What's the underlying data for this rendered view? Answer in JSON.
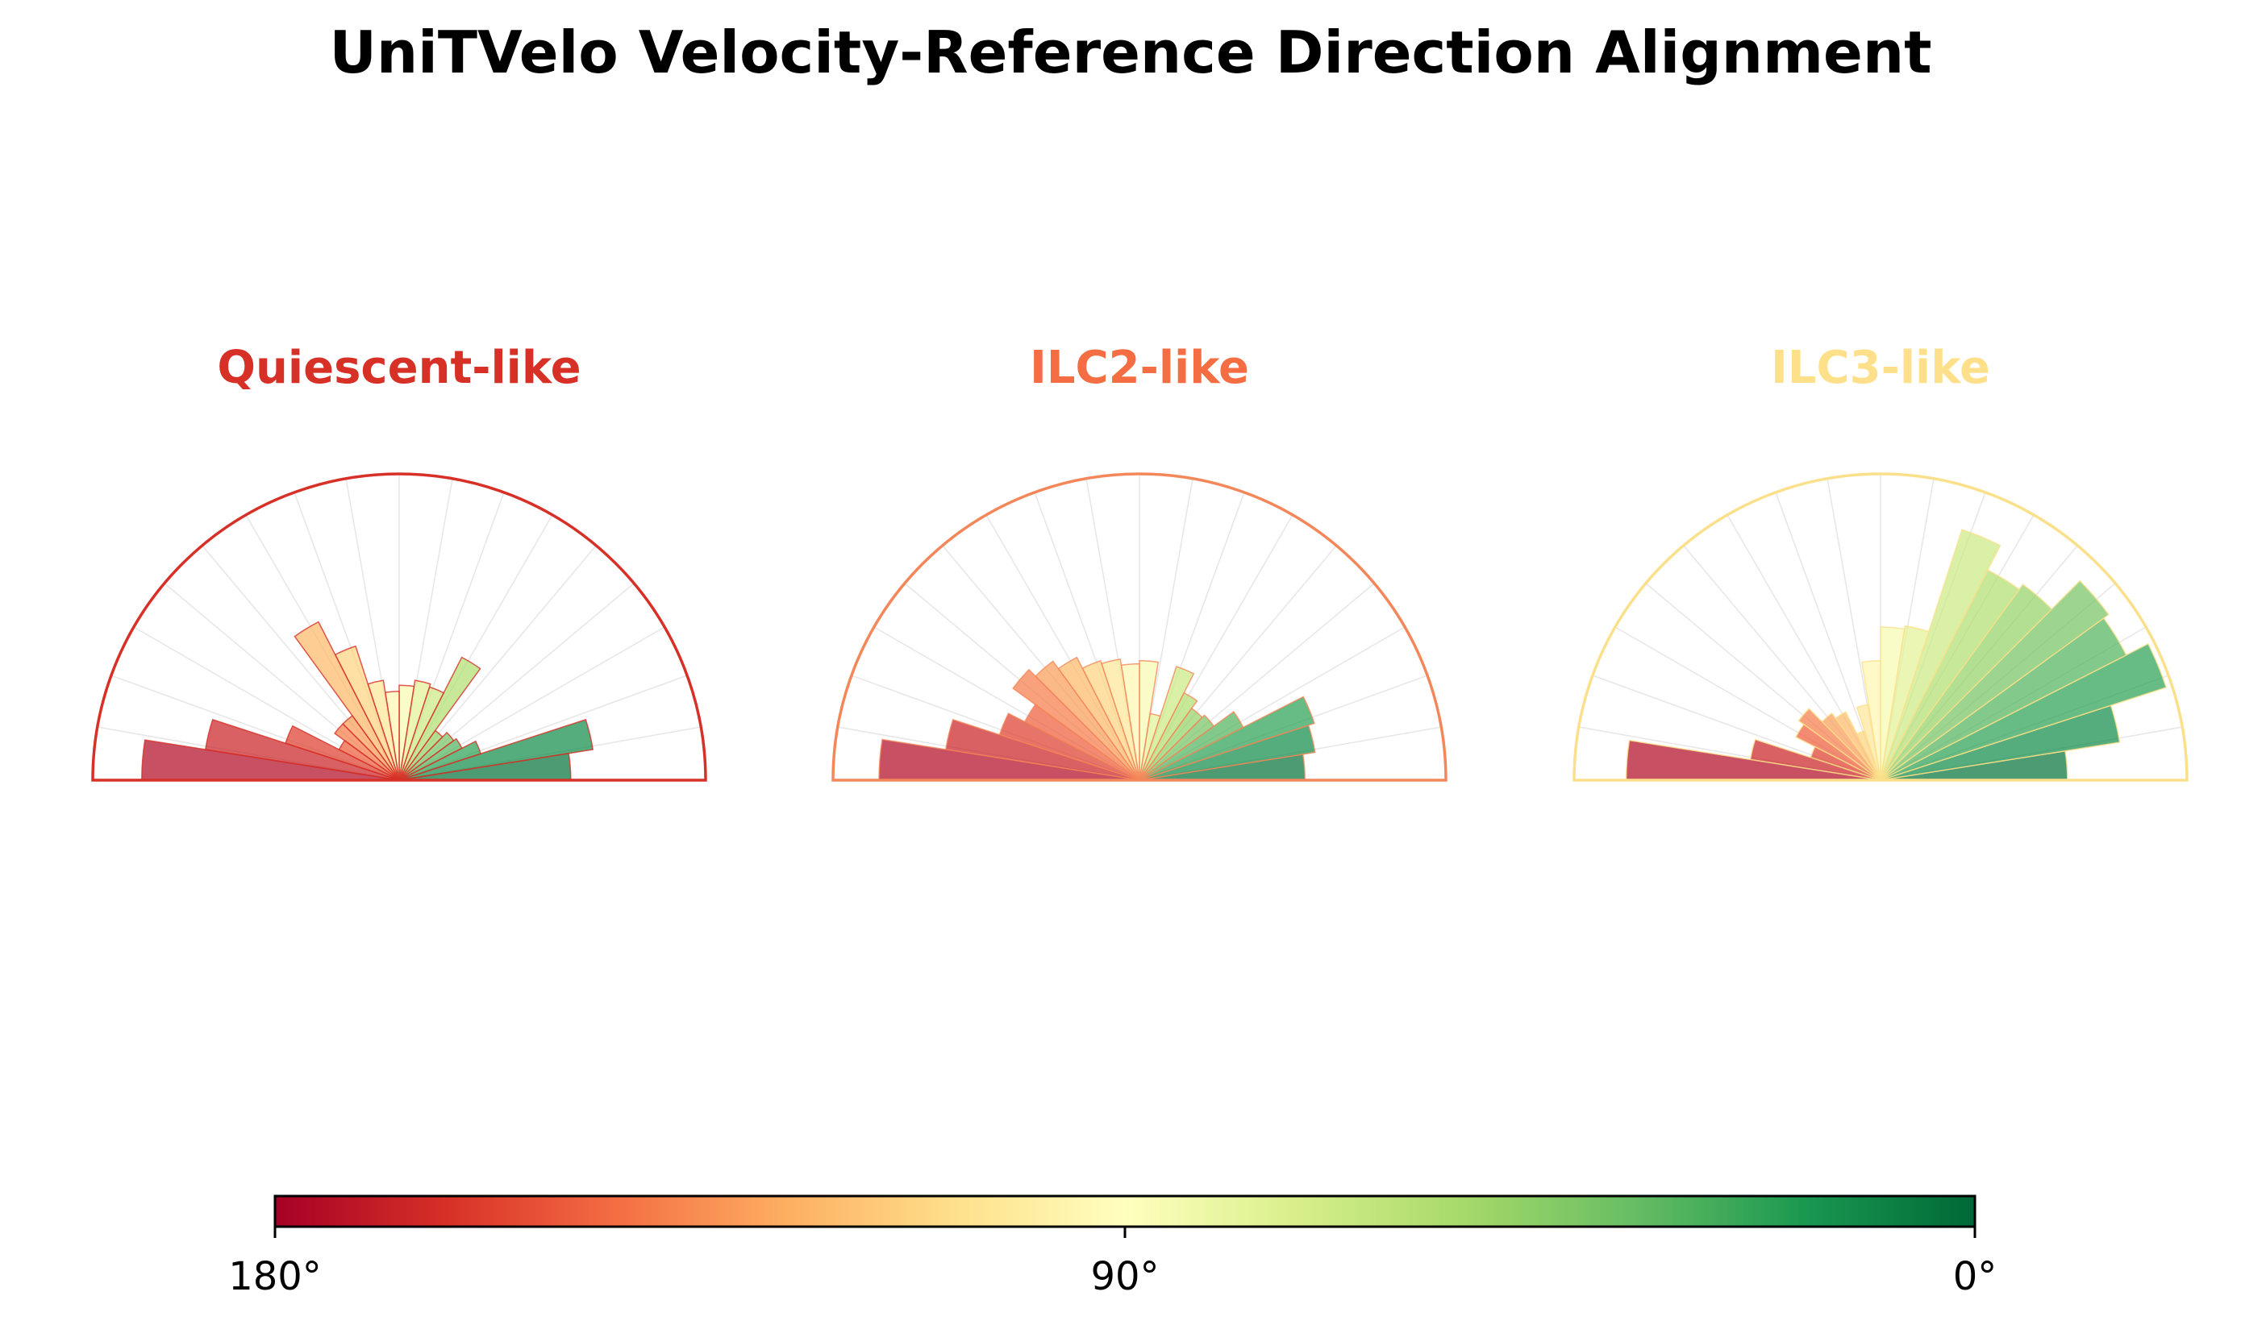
{
  "title": "UniTVelo Velocity-Reference Direction Alignment",
  "chart_data": [
    {
      "type": "polar-bar",
      "title": "Quiescent-like",
      "title_color": "#d73027",
      "frame_color": "#d73027",
      "bin_width_deg": 9,
      "x_unit": "angle (degrees, 0° right → 180° left)",
      "x": [
        4.5,
        13.5,
        22.5,
        31.5,
        40.5,
        49.5,
        58.5,
        67.5,
        76.5,
        85.5,
        94.5,
        103.5,
        112.5,
        121.5,
        130.5,
        139.5,
        148.5,
        157.5,
        166.5,
        175.5
      ],
      "values": [
        0.56,
        0.64,
        0.28,
        0.23,
        0.22,
        0.2,
        0.45,
        0.32,
        0.33,
        0.31,
        0.29,
        0.33,
        0.46,
        0.58,
        0.26,
        0.26,
        0.22,
        0.39,
        0.64,
        0.84
      ],
      "rlim": [
        0,
        1
      ]
    },
    {
      "type": "polar-bar",
      "title": "ILC2-like",
      "title_color": "#f46d43",
      "frame_color": "#f4875a",
      "bin_width_deg": 9,
      "x_unit": "angle (degrees, 0° right → 180° left)",
      "x": [
        4.5,
        13.5,
        22.5,
        31.5,
        40.5,
        49.5,
        58.5,
        67.5,
        76.5,
        85.5,
        94.5,
        103.5,
        112.5,
        121.5,
        130.5,
        139.5,
        148.5,
        157.5,
        166.5,
        175.5
      ],
      "values": [
        0.54,
        0.58,
        0.6,
        0.38,
        0.3,
        0.29,
        0.32,
        0.39,
        0.22,
        0.39,
        0.38,
        0.4,
        0.41,
        0.45,
        0.48,
        0.51,
        0.42,
        0.48,
        0.64,
        0.85
      ],
      "rlim": [
        0,
        1
      ]
    },
    {
      "type": "polar-bar",
      "title": "ILC3-like",
      "title_color": "#fee08b",
      "frame_color": "#fbe08b",
      "bin_width_deg": 9,
      "x_unit": "angle (degrees, 0° right → 180° left)",
      "x": [
        4.5,
        13.5,
        22.5,
        31.5,
        40.5,
        49.5,
        58.5,
        67.5,
        76.5,
        85.5,
        94.5,
        103.5,
        112.5,
        121.5,
        130.5,
        139.5,
        148.5,
        157.5,
        166.5,
        175.5
      ],
      "values": [
        0.61,
        0.79,
        0.98,
        0.9,
        0.92,
        0.79,
        0.77,
        0.86,
        0.51,
        0.5,
        0.39,
        0.25,
        0.17,
        0.25,
        0.27,
        0.33,
        0.31,
        0.24,
        0.43,
        0.83
      ],
      "rlim": [
        0,
        1
      ]
    }
  ],
  "colorbar": {
    "colormap": "RdYlGn",
    "range_deg": [
      180,
      0
    ],
    "ticks": [
      "180°",
      "90°",
      "0°"
    ]
  }
}
